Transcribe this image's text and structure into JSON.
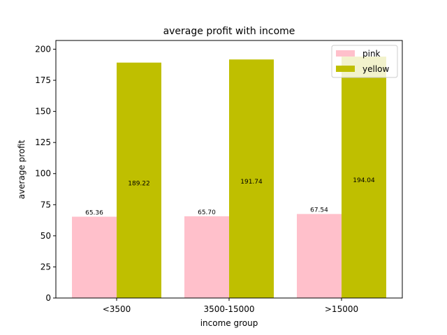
{
  "chart_data": {
    "type": "bar",
    "title": "average profit with income",
    "xlabel": "income group",
    "ylabel": "average profit",
    "categories": [
      "<3500",
      "3500-15000",
      ">15000"
    ],
    "series": [
      {
        "name": "pink",
        "color": "#ffc0cb",
        "values": [
          65.36,
          65.7,
          67.54
        ],
        "labels": [
          "65.36",
          "65.70",
          "67.54"
        ]
      },
      {
        "name": "yellow",
        "color": "#bfbf00",
        "values": [
          189.22,
          191.74,
          194.04
        ],
        "labels": [
          "189.22",
          "191.74",
          "194.04"
        ]
      }
    ],
    "ylim": [
      0,
      207
    ],
    "yticks": [
      0,
      25,
      50,
      75,
      100,
      125,
      150,
      175,
      200
    ],
    "grid": false,
    "legend_position": "top-right"
  }
}
